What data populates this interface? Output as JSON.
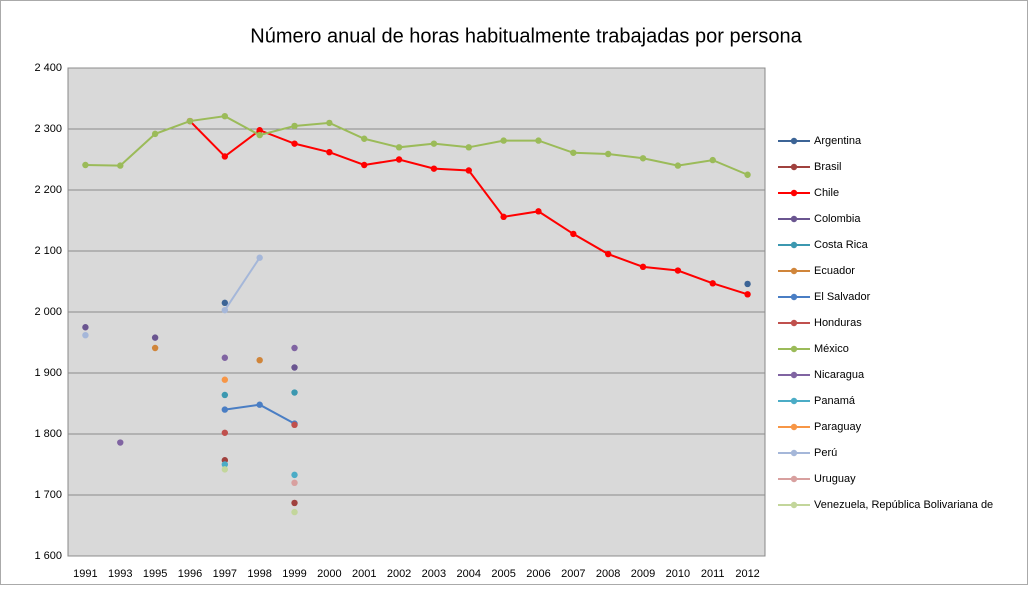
{
  "chart_data": {
    "type": "line",
    "title": "Número anual de horas habitualmente trabajadas por persona",
    "categories": [
      "1991",
      "1993",
      "1995",
      "1996",
      "1997",
      "1998",
      "1999",
      "2000",
      "2001",
      "2002",
      "2003",
      "2004",
      "2005",
      "2006",
      "2007",
      "2008",
      "2009",
      "2010",
      "2011",
      "2012"
    ],
    "ylim": [
      1600,
      2400
    ],
    "yticks": [
      {
        "value": 1600,
        "label": "1 600"
      },
      {
        "value": 1700,
        "label": "1 700"
      },
      {
        "value": 1800,
        "label": "1 800"
      },
      {
        "value": 1900,
        "label": "1 900"
      },
      {
        "value": 2000,
        "label": "2 000"
      },
      {
        "value": 2100,
        "label": "2 100"
      },
      {
        "value": 2200,
        "label": "2 200"
      },
      {
        "value": 2300,
        "label": "2 300"
      },
      {
        "value": 2400,
        "label": "2 400"
      }
    ],
    "grid": true,
    "legend": "right",
    "series": [
      {
        "name": "Argentina",
        "color": "#3c6496",
        "values": [
          null,
          null,
          null,
          null,
          2015,
          null,
          null,
          null,
          null,
          null,
          null,
          null,
          null,
          null,
          null,
          null,
          null,
          null,
          null,
          2046
        ]
      },
      {
        "name": "Brasil",
        "color": "#a0413e",
        "values": [
          null,
          null,
          null,
          null,
          1757,
          null,
          1687,
          null,
          null,
          null,
          null,
          null,
          null,
          null,
          null,
          null,
          null,
          null,
          null,
          null
        ]
      },
      {
        "name": "Chile",
        "color": "#ff0000",
        "values": [
          null,
          null,
          null,
          2313,
          2255,
          2298,
          2276,
          2262,
          2241,
          2250,
          2235,
          2232,
          2156,
          2165,
          2128,
          2095,
          2074,
          2068,
          2047,
          2029
        ]
      },
      {
        "name": "Colombia",
        "color": "#6a5590",
        "values": [
          1975,
          null,
          1958,
          null,
          null,
          null,
          1909,
          null,
          null,
          null,
          null,
          null,
          null,
          null,
          null,
          null,
          null,
          null,
          null,
          null
        ]
      },
      {
        "name": "Costa Rica",
        "color": "#3c98b0",
        "values": [
          null,
          null,
          null,
          null,
          1864,
          null,
          1868,
          null,
          null,
          null,
          null,
          null,
          null,
          null,
          null,
          null,
          null,
          null,
          null,
          null
        ]
      },
      {
        "name": "Ecuador",
        "color": "#d0853a",
        "values": [
          null,
          null,
          1941,
          null,
          null,
          1921,
          null,
          null,
          null,
          null,
          null,
          null,
          null,
          null,
          null,
          null,
          null,
          null,
          null,
          null
        ]
      },
      {
        "name": "El Salvador",
        "color": "#4a7ec4",
        "values": [
          null,
          null,
          null,
          null,
          1840,
          1848,
          1817,
          null,
          null,
          null,
          null,
          null,
          null,
          null,
          null,
          null,
          null,
          null,
          null,
          null
        ]
      },
      {
        "name": "Honduras",
        "color": "#c0504d",
        "values": [
          null,
          null,
          null,
          null,
          1802,
          null,
          1815,
          null,
          null,
          null,
          null,
          null,
          null,
          null,
          null,
          null,
          null,
          null,
          null,
          null
        ]
      },
      {
        "name": "México",
        "color": "#9bbb59",
        "values": [
          2241,
          2240,
          2292,
          2313,
          2321,
          2290,
          2305,
          2310,
          2284,
          2270,
          2276,
          2270,
          2281,
          2281,
          2261,
          2259,
          2252,
          2240,
          2249,
          2225
        ]
      },
      {
        "name": "Nicaragua",
        "color": "#8064a2",
        "values": [
          null,
          1786,
          null,
          null,
          1925,
          null,
          1941,
          null,
          null,
          null,
          null,
          null,
          null,
          null,
          null,
          null,
          null,
          null,
          null,
          null
        ]
      },
      {
        "name": "Panamá",
        "color": "#4bacc6",
        "values": [
          null,
          null,
          null,
          null,
          1750,
          null,
          1733,
          null,
          null,
          null,
          null,
          null,
          null,
          null,
          null,
          null,
          null,
          null,
          null,
          null
        ]
      },
      {
        "name": "Paraguay",
        "color": "#f79646",
        "values": [
          null,
          null,
          null,
          null,
          1889,
          null,
          null,
          null,
          null,
          null,
          null,
          null,
          null,
          null,
          null,
          null,
          null,
          null,
          null,
          null
        ]
      },
      {
        "name": "Perú",
        "color": "#a5b7d9",
        "values": [
          1962,
          null,
          null,
          null,
          2003,
          2089,
          null,
          null,
          null,
          null,
          null,
          null,
          null,
          null,
          null,
          null,
          null,
          null,
          null,
          null
        ]
      },
      {
        "name": "Uruguay",
        "color": "#d8a09f",
        "values": [
          null,
          null,
          null,
          null,
          null,
          null,
          1720,
          null,
          null,
          null,
          null,
          null,
          null,
          null,
          null,
          null,
          null,
          null,
          null,
          null
        ]
      },
      {
        "name": "Venezuela, República Bolivariana de",
        "color": "#c3d69b",
        "values": [
          null,
          null,
          null,
          null,
          1742,
          null,
          1672,
          null,
          null,
          null,
          null,
          null,
          null,
          null,
          null,
          null,
          null,
          null,
          null,
          null
        ]
      }
    ]
  }
}
